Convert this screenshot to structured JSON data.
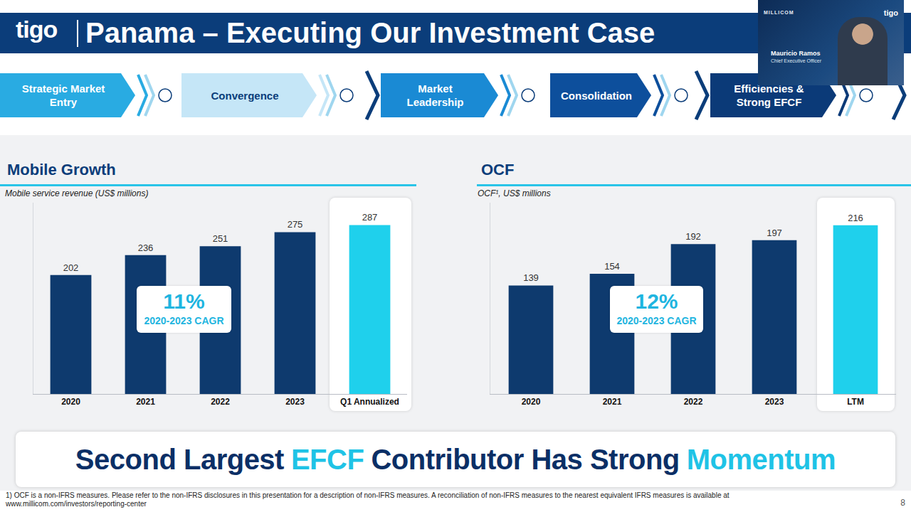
{
  "header": {
    "logo": "tigo",
    "title": "Panama – Executing Our Investment Case"
  },
  "speaker": {
    "company": "MILLICOM",
    "logo": "tigo",
    "name": "Mauricio Ramos",
    "role": "Chief Executive Officer"
  },
  "steps": [
    {
      "label": "Strategic Market Entry",
      "color": "#29abe2"
    },
    {
      "label": "Convergence",
      "color": "#c5e6f7"
    },
    {
      "label": "Market Leadership",
      "color": "#1a8ad4"
    },
    {
      "label": "Consolidation",
      "color": "#0d4f9c"
    },
    {
      "label": "Efficiencies & Strong EFCF",
      "color": "#0b3a78"
    }
  ],
  "chart_data": [
    {
      "type": "bar",
      "title": "Mobile Growth",
      "subtitle": "Mobile service revenue (US$ millions)",
      "categories": [
        "2020",
        "2021",
        "2022",
        "2023",
        "Q1 Annualized"
      ],
      "values": [
        202,
        236,
        251,
        275,
        287
      ],
      "colors": [
        "#0e3a6e",
        "#0e3a6e",
        "#0e3a6e",
        "#0e3a6e",
        "#1fd0ec"
      ],
      "ylim": [
        0,
        325
      ],
      "yticks": [],
      "tick_labels": "x",
      "grid": false,
      "data_labels": true,
      "annotations": [
        {
          "label": "11%",
          "caption": "2020-2023 CAGR"
        }
      ]
    },
    {
      "type": "bar",
      "title": "OCF",
      "subtitle": "OCF¹, US$ millions",
      "categories": [
        "2020",
        "2021",
        "2022",
        "2023",
        "LTM"
      ],
      "values": [
        139,
        154,
        192,
        197,
        216
      ],
      "colors": [
        "#0e3a6e",
        "#0e3a6e",
        "#0e3a6e",
        "#0e3a6e",
        "#1fd0ec"
      ],
      "ylim": [
        0,
        245
      ],
      "yticks": [],
      "tick_labels": "x",
      "grid": false,
      "data_labels": true,
      "annotations": [
        {
          "label": "12%",
          "caption": "2020-2023 CAGR"
        }
      ]
    }
  ],
  "banner": [
    {
      "text": "Second Largest",
      "color": "#0b2f66"
    },
    {
      "text": "EFCF",
      "color": "#1fc3e6"
    },
    {
      "text": "Contributor Has Strong",
      "color": "#0b2f66"
    },
    {
      "text": "Momentum",
      "color": "#1fc3e6"
    }
  ],
  "footnote": "1) OCF is a non-IFRS measures. Please refer to the non-IFRS disclosures in this presentation for a description of non-IFRS measures. A reconciliation of non-IFRS measures to the nearest equivalent IFRS measures is available at www.millicom.com/investors/reporting-center",
  "page": 8
}
